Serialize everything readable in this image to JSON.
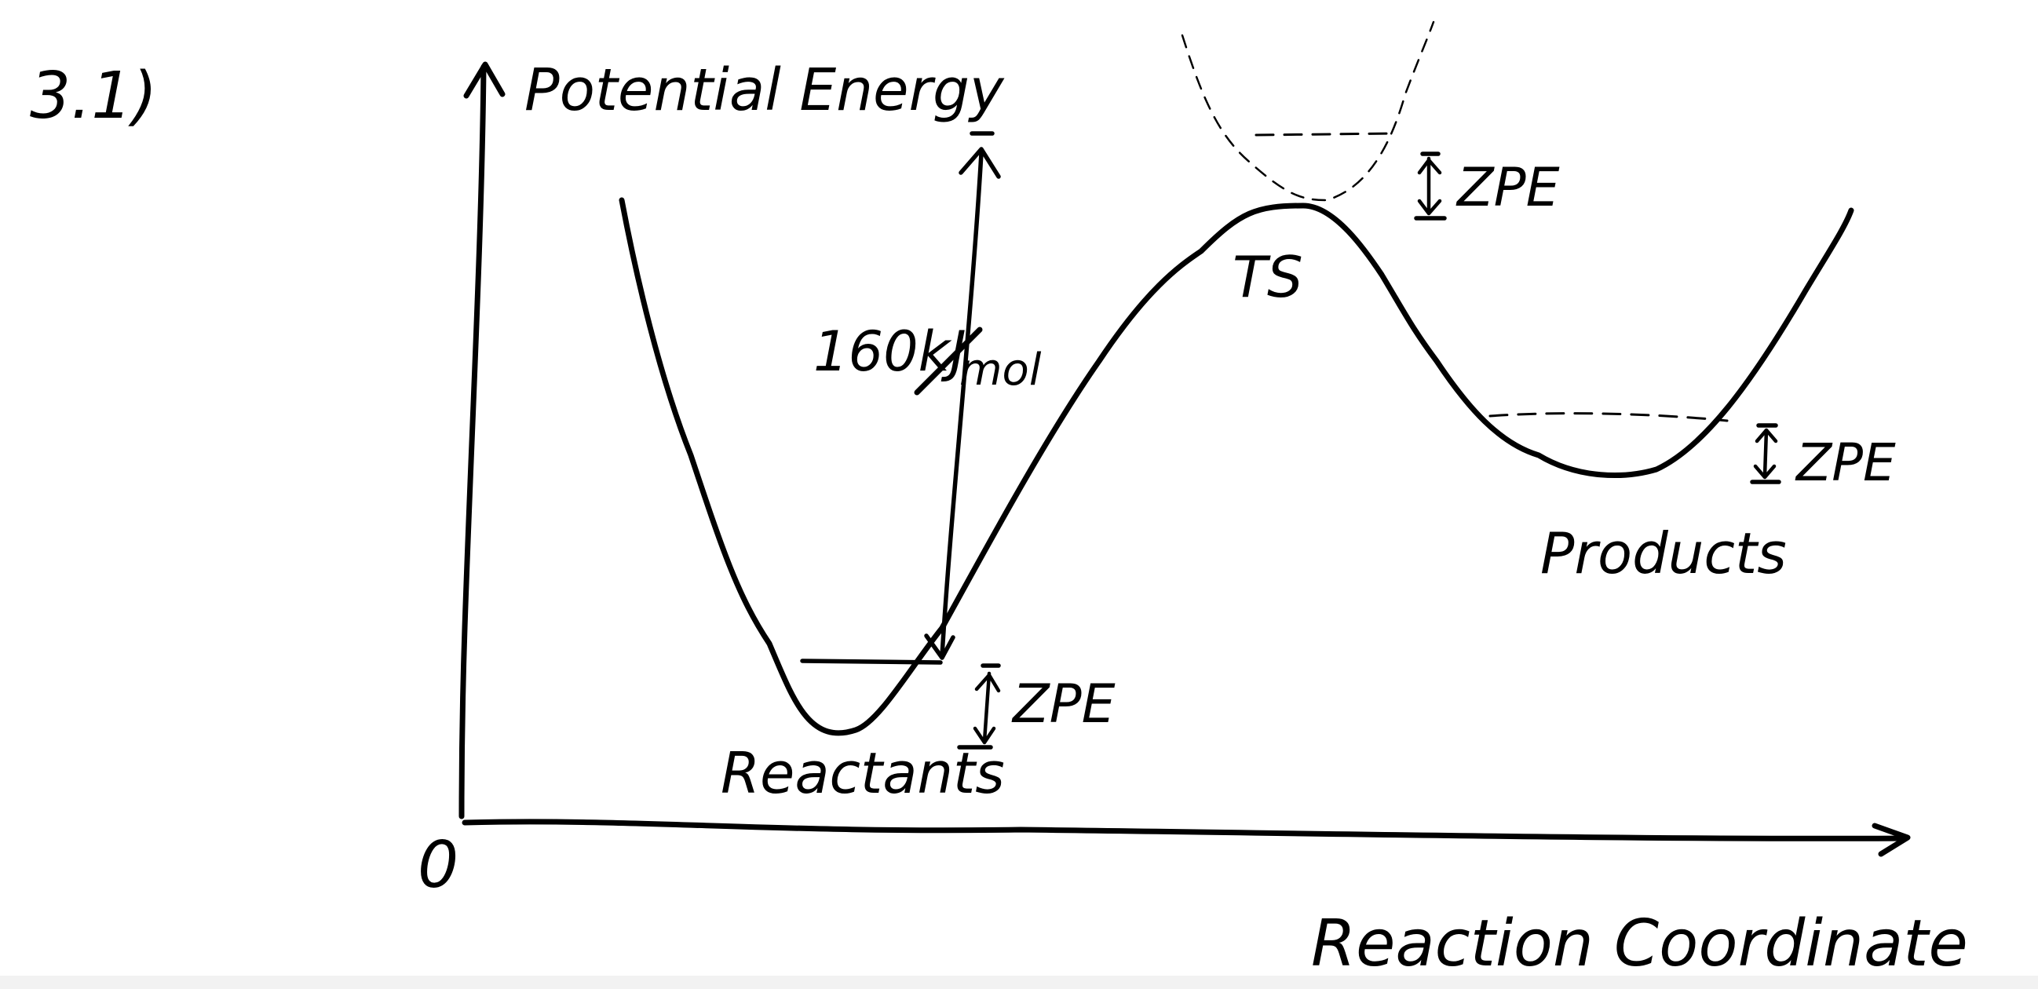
{
  "problem": {
    "number": "3.1)"
  },
  "axes": {
    "y_label": "Potential Energy",
    "x_label": "Reaction Coordinate",
    "origin_label": "0"
  },
  "labels": {
    "reactants": "Reactants",
    "products": "Products",
    "transition_state": "TS",
    "energy_number": "160kJ",
    "energy_unit": "mol",
    "zpe_reactants": "ZPE",
    "zpe_ts": "ZPE",
    "zpe_products": "ZPE"
  },
  "colors": {
    "ink": "#000000",
    "background": "#ffffff"
  }
}
